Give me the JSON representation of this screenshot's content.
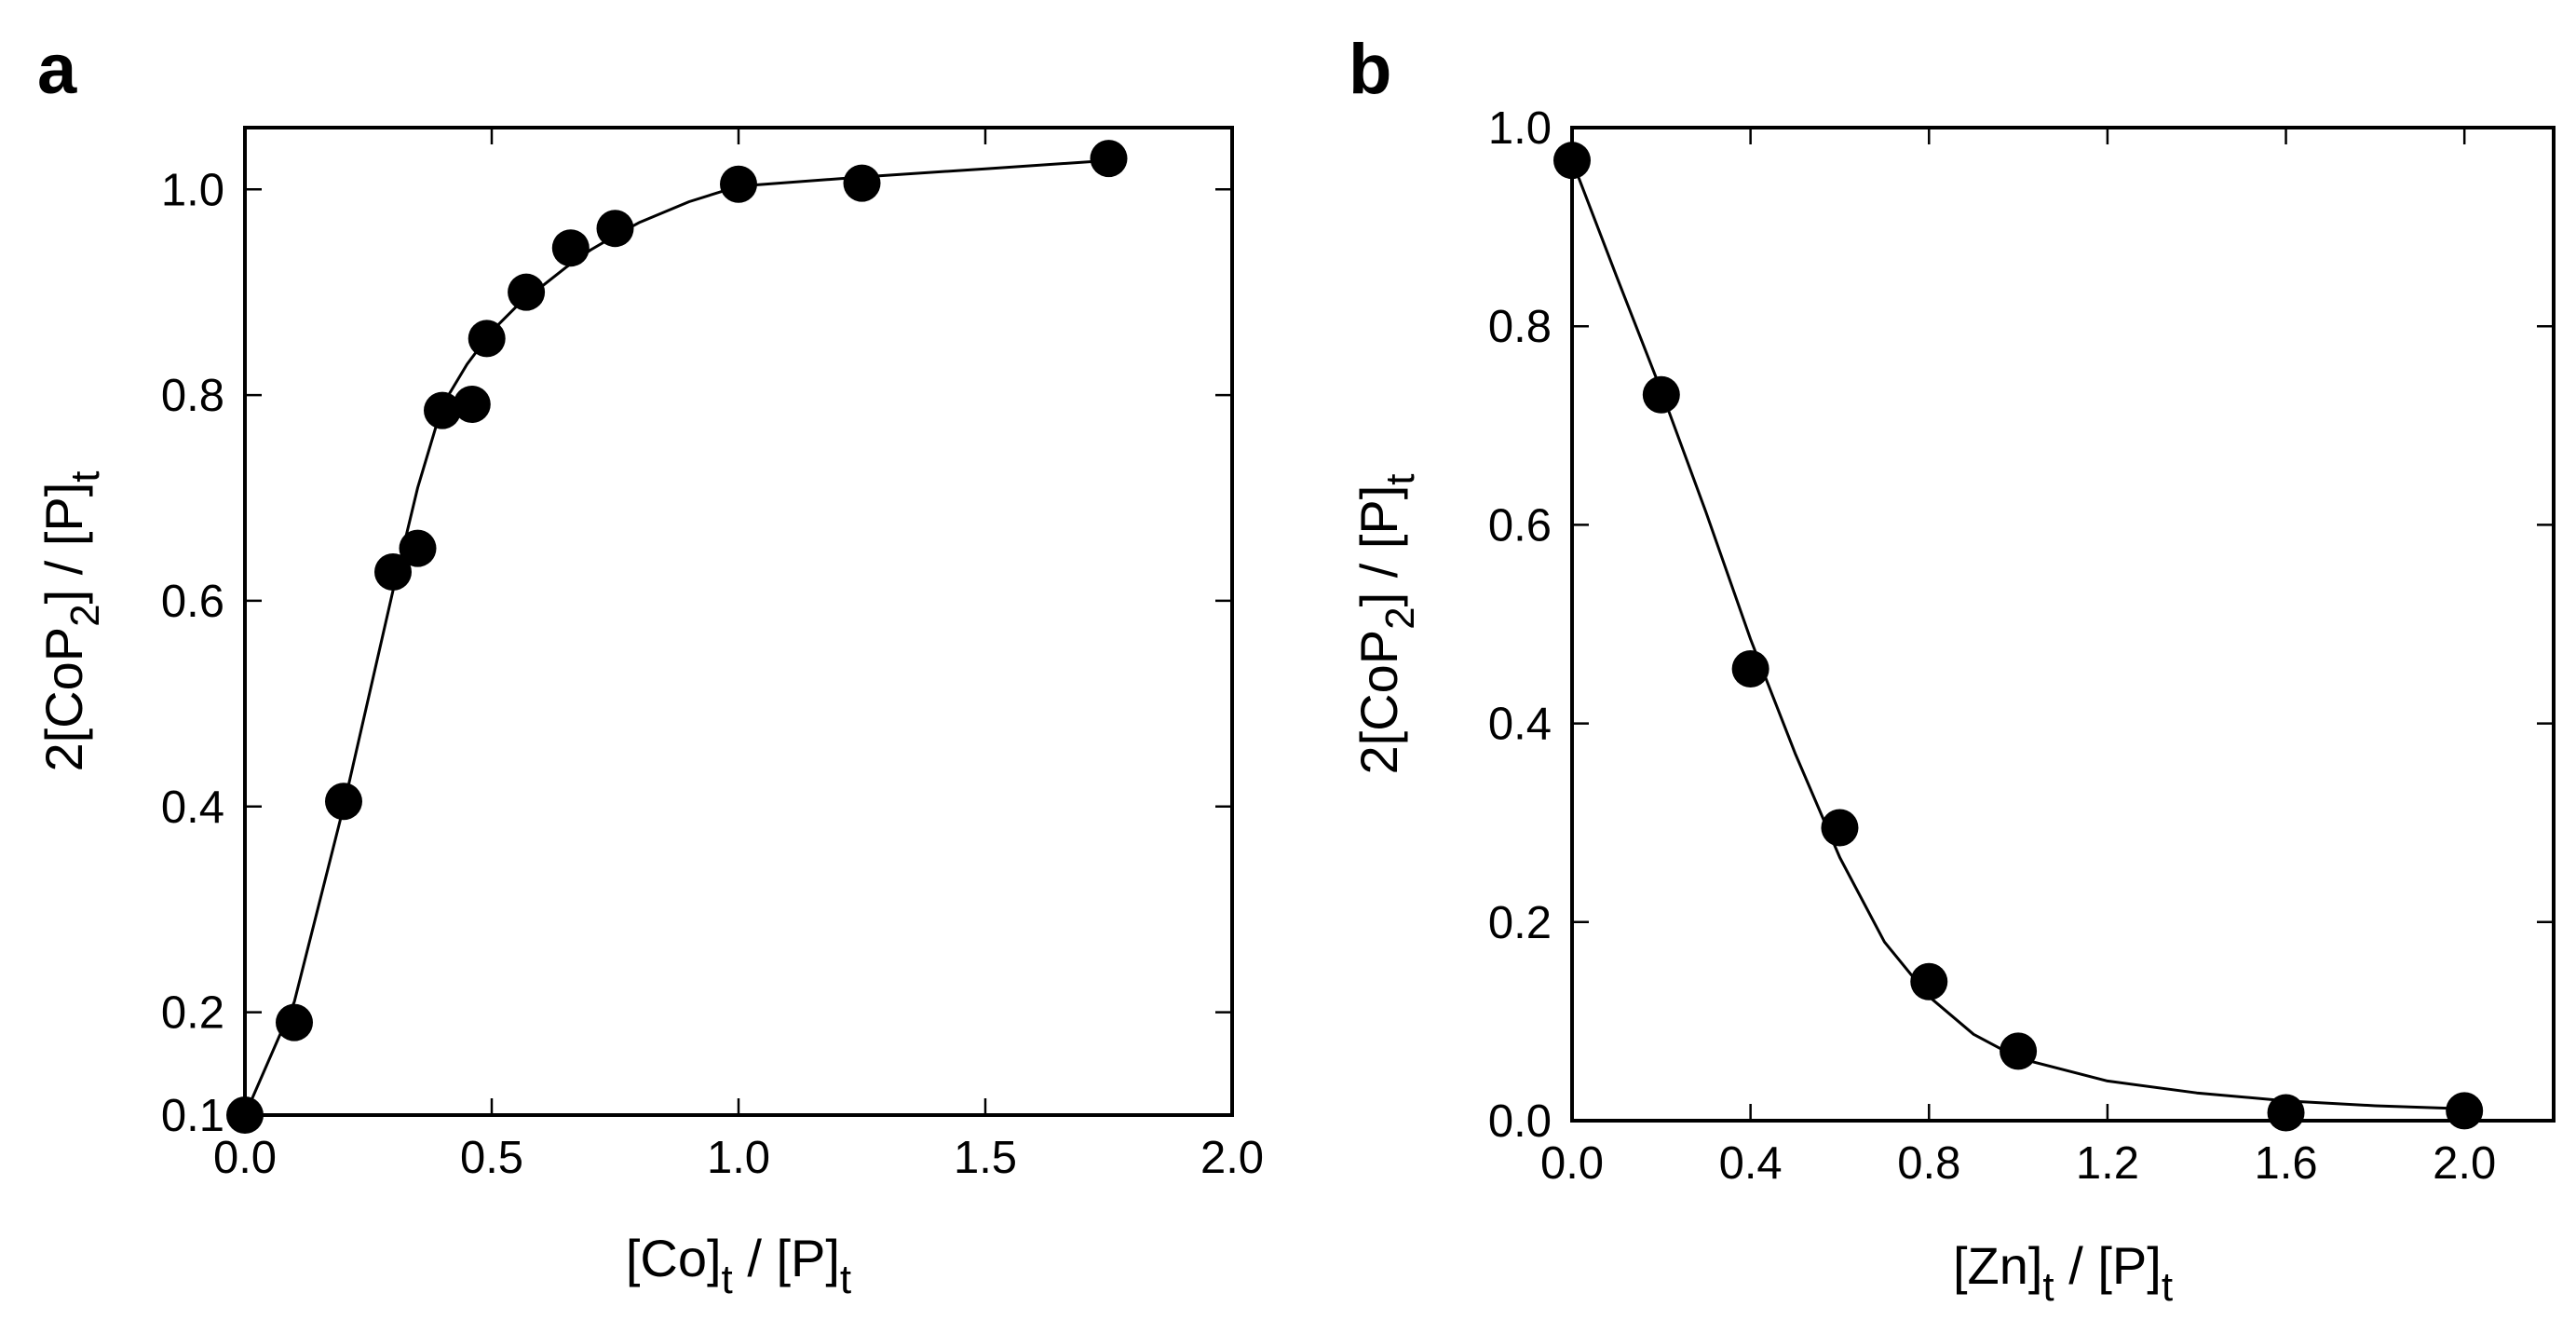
{
  "chart_data": [
    {
      "panel": "a",
      "type": "scatter",
      "xlabel": {
        "main": "[Co]",
        "sub": "t",
        "rest": " / [P]",
        "sub2": "t"
      },
      "ylabel": {
        "pre": "2[CoP",
        "sub": "2",
        "mid": "] / [P]",
        "sub2": "t"
      },
      "xlim": [
        0.0,
        2.0
      ],
      "ylim": [
        0.1,
        1.06
      ],
      "xticks": [
        0.0,
        0.5,
        1.0,
        1.5,
        2.0
      ],
      "xtick_labels": [
        "0.0",
        "0.5",
        "1.0",
        "1.5",
        "2.0"
      ],
      "yticks": [
        0.1,
        0.2,
        0.4,
        0.6,
        0.8,
        1.0
      ],
      "ytick_labels": [
        "0.1",
        "0.2",
        "0.4",
        "0.6",
        "0.8",
        "1.0"
      ],
      "points": {
        "x": [
          0.0,
          0.1,
          0.2,
          0.3,
          0.35,
          0.4,
          0.46,
          0.49,
          0.57,
          0.66,
          0.75,
          1.0,
          1.25,
          1.75
        ],
        "y": [
          0.1,
          0.19,
          0.405,
          0.628,
          0.651,
          0.785,
          0.791,
          0.855,
          0.9,
          0.943,
          0.962,
          1.005,
          1.006,
          1.03
        ]
      },
      "fit": {
        "x": [
          0.0,
          0.1,
          0.2,
          0.3,
          0.35,
          0.4,
          0.45,
          0.5,
          0.55,
          0.6,
          0.65,
          0.7,
          0.75,
          0.8,
          0.9,
          1.0,
          1.25,
          1.5,
          1.75
        ],
        "y": [
          0.1,
          0.21,
          0.4,
          0.61,
          0.71,
          0.79,
          0.83,
          0.862,
          0.886,
          0.905,
          0.924,
          0.941,
          0.955,
          0.968,
          0.988,
          1.003,
          1.012,
          1.02,
          1.028
        ]
      }
    },
    {
      "panel": "b",
      "type": "scatter",
      "xlabel": {
        "main": "[Zn]",
        "sub": "t",
        "rest": " / [P]",
        "sub2": "t"
      },
      "ylabel": {
        "pre": "2[CoP",
        "sub": "2",
        "mid": "] / [P]",
        "sub2": "t"
      },
      "xlim": [
        0.0,
        2.2
      ],
      "ylim": [
        0.0,
        1.0
      ],
      "xticks": [
        0.0,
        0.4,
        0.8,
        1.2,
        1.6,
        2.0
      ],
      "xtick_labels": [
        "0.0",
        "0.4",
        "0.8",
        "1.2",
        "1.6",
        "2.0"
      ],
      "yticks": [
        0.0,
        0.2,
        0.4,
        0.6,
        0.8,
        1.0
      ],
      "ytick_labels": [
        "0.0",
        "0.2",
        "0.4",
        "0.6",
        "0.8",
        "1.0"
      ],
      "points": {
        "x": [
          0.0,
          0.2,
          0.4,
          0.6,
          0.8,
          1.0,
          1.6,
          2.0
        ],
        "y": [
          0.967,
          0.731,
          0.455,
          0.295,
          0.14,
          0.07,
          0.008,
          0.01
        ]
      },
      "fit": {
        "x": [
          0.0,
          0.1,
          0.2,
          0.3,
          0.4,
          0.5,
          0.6,
          0.7,
          0.8,
          0.9,
          1.0,
          1.2,
          1.4,
          1.6,
          1.8,
          2.0
        ],
        "y": [
          0.967,
          0.85,
          0.735,
          0.613,
          0.485,
          0.37,
          0.265,
          0.18,
          0.125,
          0.087,
          0.063,
          0.04,
          0.028,
          0.02,
          0.015,
          0.012
        ]
      }
    }
  ],
  "panels": {
    "a": "a",
    "b": "b"
  }
}
